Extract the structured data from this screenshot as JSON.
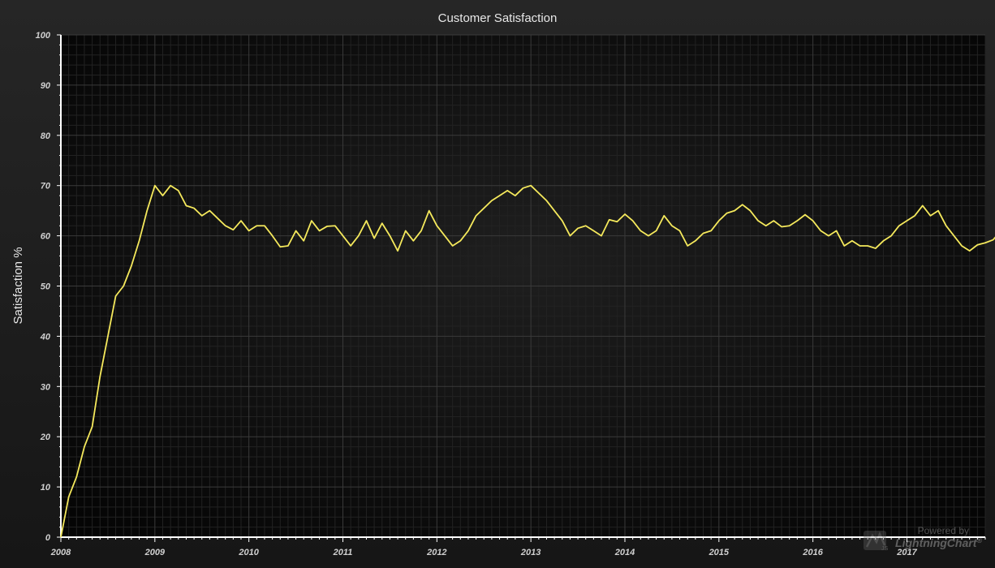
{
  "chart_data": {
    "type": "line",
    "title": "Customer Satisfaction",
    "ylabel": "Satisfaction %",
    "xlabel": "",
    "ylim": [
      0,
      100
    ],
    "xlim": [
      "2008-01",
      "2017-11"
    ],
    "yticks": [
      "0",
      "10",
      "20",
      "30",
      "40",
      "50",
      "60",
      "70",
      "80",
      "90",
      "100"
    ],
    "xticks": [
      "2008",
      "2009",
      "2010",
      "2011",
      "2012",
      "2013",
      "2014",
      "2015",
      "2016",
      "2017"
    ],
    "grid": true,
    "series": [
      {
        "color": "#f5e95c",
        "start": "2008-01",
        "interval": "month",
        "values": [
          0,
          8,
          12,
          18,
          22,
          32,
          40,
          48,
          50,
          54,
          59,
          65,
          70,
          68,
          70,
          69,
          66,
          65.5,
          64,
          65,
          63.5,
          62,
          61.2,
          63,
          61,
          62,
          62,
          60,
          57.8,
          58,
          61,
          59,
          63,
          61,
          61.9,
          62,
          60,
          58,
          60,
          63,
          59.5,
          62.5,
          60,
          57,
          61,
          59,
          61,
          65,
          62,
          60,
          58,
          59,
          61,
          64,
          65.5,
          67,
          68,
          69,
          68,
          69.5,
          70,
          68.5,
          67,
          65,
          63,
          60,
          61.5,
          62,
          61,
          60,
          63.2,
          62.8,
          64.3,
          63,
          61,
          60,
          61,
          64,
          62,
          61,
          58,
          59,
          60.5,
          61,
          63,
          64.5,
          65,
          66.2,
          65,
          63,
          62,
          63,
          61.8,
          62,
          63,
          64.2,
          63,
          61,
          60,
          61,
          58,
          59,
          58,
          58,
          57.5,
          59,
          60,
          62,
          63,
          64,
          66,
          64,
          65,
          62,
          60,
          58,
          57,
          58.2,
          58.6,
          59.2,
          61
        ]
      }
    ]
  },
  "watermark": {
    "line1": "Powered by",
    "line2": "LightningChart",
    "mark": "®",
    "logo_icon": "lightningchart-logo-icon",
    "logo_text": "JS"
  },
  "colors": {
    "background": "#1a1a1a",
    "plot_background": "#0a0a0a",
    "line": "#f5e95c",
    "title_text": "#e8e8e8",
    "tick_text": "#d0d0d0",
    "grid_major": "#3a3a3a",
    "grid_minor": "#222222",
    "axis": "#ffffff"
  }
}
